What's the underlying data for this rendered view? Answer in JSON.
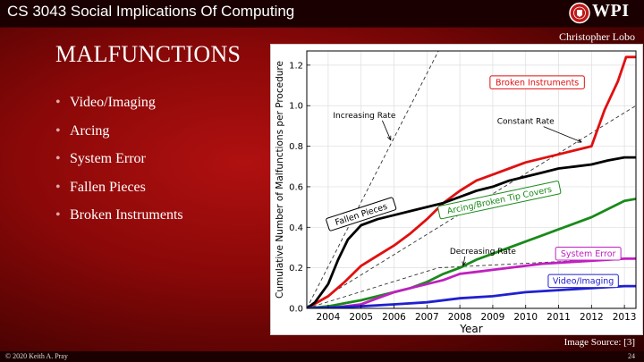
{
  "header": {
    "course_title": "CS 3043 Social Implications Of Computing",
    "logo_text": "WPI"
  },
  "author": "Christopher Lobo",
  "slide": {
    "heading": "MALFUNCTIONS",
    "bullets": [
      "Video/Imaging",
      "Arcing",
      "System Error",
      "Fallen Pieces",
      "Broken Instruments"
    ]
  },
  "image_source": "Image Source: [3]",
  "footer": {
    "copyright": "© 2020 Keith A. Pray",
    "page_number": "24"
  },
  "colors": {
    "broken": "#e01010",
    "fallen": "#000000",
    "arcing": "#1a8a1a",
    "system": "#c020c0",
    "video": "#2020d0",
    "reference": "#333333"
  },
  "chart_data": {
    "type": "line",
    "title": "",
    "xlabel": "Year",
    "ylabel": "Cumulative Number of Malfunctions per Procedure",
    "xlim": [
      2003.35,
      2013.35
    ],
    "ylim": [
      0,
      1.27
    ],
    "x_ticks": [
      2004,
      2005,
      2006,
      2007,
      2008,
      2009,
      2010,
      2011,
      2012,
      2013
    ],
    "y_ticks": [
      0.0,
      0.2,
      0.4,
      0.6,
      0.8,
      1.0,
      1.2
    ],
    "grid": true,
    "series": [
      {
        "name": "Broken Instruments",
        "key": "broken",
        "x": [
          2003.35,
          2004,
          2004.5,
          2005,
          2005.5,
          2006,
          2006.5,
          2007,
          2007.5,
          2008,
          2008.5,
          2009,
          2009.5,
          2010,
          2010.5,
          2011,
          2011.5,
          2012,
          2012.4,
          2012.8,
          2013.05,
          2013.35
        ],
        "y": [
          0,
          0.06,
          0.13,
          0.21,
          0.26,
          0.31,
          0.37,
          0.44,
          0.52,
          0.58,
          0.63,
          0.66,
          0.69,
          0.72,
          0.74,
          0.76,
          0.78,
          0.8,
          0.98,
          1.12,
          1.24,
          1.24
        ]
      },
      {
        "name": "Fallen Pieces",
        "key": "fallen",
        "x": [
          2003.35,
          2003.6,
          2004,
          2004.3,
          2004.6,
          2005,
          2005.5,
          2006,
          2006.5,
          2007,
          2007.5,
          2008,
          2008.5,
          2009,
          2009.5,
          2010,
          2010.5,
          2011,
          2011.5,
          2012,
          2012.5,
          2013,
          2013.35
        ],
        "y": [
          0,
          0.03,
          0.12,
          0.24,
          0.34,
          0.41,
          0.44,
          0.46,
          0.48,
          0.5,
          0.52,
          0.55,
          0.58,
          0.6,
          0.63,
          0.65,
          0.67,
          0.69,
          0.7,
          0.71,
          0.73,
          0.745,
          0.745
        ]
      },
      {
        "name": "Arcing/Broken Tip Covers",
        "key": "arcing",
        "x": [
          2003.35,
          2004,
          2005,
          2005.5,
          2006,
          2006.5,
          2007,
          2007.5,
          2008,
          2008.5,
          2009,
          2009.5,
          2010,
          2010.5,
          2011,
          2011.5,
          2012,
          2012.5,
          2013,
          2013.35
        ],
        "y": [
          0,
          0.01,
          0.04,
          0.06,
          0.08,
          0.1,
          0.13,
          0.17,
          0.2,
          0.24,
          0.27,
          0.3,
          0.33,
          0.36,
          0.39,
          0.42,
          0.45,
          0.49,
          0.53,
          0.54
        ]
      },
      {
        "name": "System Error",
        "key": "system",
        "x": [
          2003.35,
          2004,
          2005,
          2005.5,
          2006,
          2006.5,
          2007,
          2007.5,
          2008,
          2008.5,
          2009,
          2009.5,
          2010,
          2010.5,
          2011,
          2011.5,
          2012,
          2012.5,
          2013,
          2013.35
        ],
        "y": [
          0,
          0,
          0.02,
          0.05,
          0.08,
          0.1,
          0.12,
          0.14,
          0.17,
          0.18,
          0.19,
          0.2,
          0.21,
          0.22,
          0.225,
          0.23,
          0.235,
          0.24,
          0.245,
          0.245
        ]
      },
      {
        "name": "Video/Imaging",
        "key": "video",
        "x": [
          2003.35,
          2005,
          2006,
          2007,
          2008,
          2009,
          2010,
          2011,
          2012,
          2013,
          2013.35
        ],
        "y": [
          0,
          0.01,
          0.02,
          0.03,
          0.05,
          0.06,
          0.08,
          0.09,
          0.1,
          0.11,
          0.11
        ]
      }
    ],
    "reference_lines": [
      {
        "name": "Increasing Rate",
        "x": [
          2003.35,
          2007.35
        ],
        "y": [
          0,
          1.27
        ]
      },
      {
        "name": "Constant Rate",
        "x": [
          2003.35,
          2013.35
        ],
        "y": [
          0,
          1.0
        ]
      },
      {
        "name": "Decreasing Rate",
        "x": [
          2003.35,
          2007.35,
          2013.35
        ],
        "y": [
          0,
          0.2,
          0.25
        ]
      }
    ],
    "annotations": [
      {
        "text": "Increasing Rate",
        "x": 2005.1,
        "y": 0.94,
        "arrow_to": [
          2005.9,
          0.83
        ]
      },
      {
        "text": "Constant Rate",
        "x": 2010.0,
        "y": 0.91,
        "arrow_to": [
          2011.7,
          0.82
        ]
      },
      {
        "text": "Decreasing Rate",
        "x": 2008.7,
        "y": 0.27,
        "arrow_to": [
          2008.1,
          0.21
        ]
      }
    ],
    "boxed_labels": [
      {
        "text": "Broken Instruments",
        "key": "broken",
        "x": 2010.35,
        "y": 1.115
      },
      {
        "text": "Fallen Pieces",
        "key": "fallen",
        "x": 2005.0,
        "y": 0.465,
        "rotate": -18
      },
      {
        "text": "Arcing/Broken Tip Covers",
        "key": "arcing",
        "x": 2009.2,
        "y": 0.535,
        "rotate": -12
      },
      {
        "text": "System Error",
        "key": "system",
        "x": 2011.9,
        "y": 0.27
      },
      {
        "text": "Video/Imaging",
        "key": "video",
        "x": 2011.75,
        "y": 0.135
      }
    ]
  }
}
